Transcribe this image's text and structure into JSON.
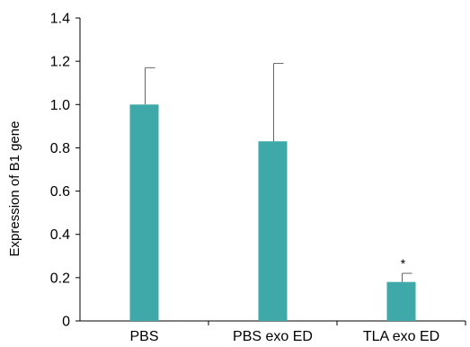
{
  "chart_data": {
    "type": "bar",
    "ylabel": "Expression of B1 gene",
    "xlabel": "",
    "ylim": [
      0,
      1.4
    ],
    "yticks": [
      "0",
      "0.2",
      "0.4",
      "0.6",
      "0.8",
      "1.0",
      "1.2",
      "1.4"
    ],
    "categories": [
      "PBS",
      "PBS exo ED",
      "TLA exo ED"
    ],
    "values": [
      1.0,
      0.83,
      0.18
    ],
    "error_upper": [
      1.17,
      1.19,
      0.22
    ],
    "annotations": [
      "",
      "",
      "*"
    ],
    "bar_color": "#3fa8a8",
    "error_color": "#666666",
    "grid": false,
    "legend": "none"
  }
}
